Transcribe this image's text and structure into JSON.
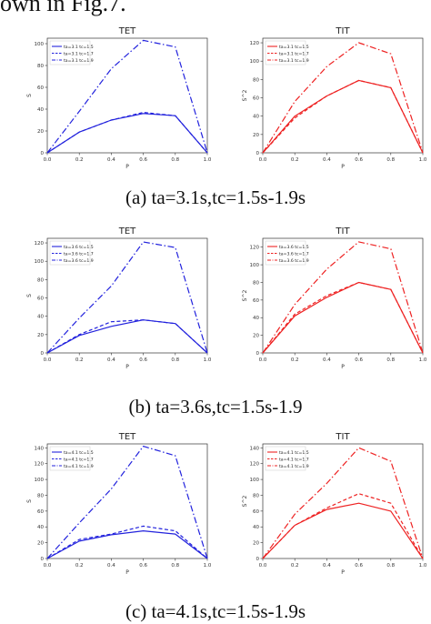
{
  "page": {
    "top_text": "own in Fig.7.",
    "captions": [
      "(a) ta=3.1s,tc=1.5s-1.9s",
      "(b) ta=3.6s,tc=1.5s-1.9",
      "(c) ta=4.1s,tc=1.5s-1.9s"
    ]
  },
  "colors": {
    "tet": "#2222dd",
    "tit": "#ee2222",
    "axis": "#333333"
  },
  "chart_data": [
    {
      "type": "line",
      "title": "TET",
      "xlabel": "P",
      "ylabel": "S",
      "x": [
        0.0,
        0.2,
        0.4,
        0.6,
        0.8,
        1.0
      ],
      "xlim": [
        0,
        1
      ],
      "ylim": [
        0,
        105
      ],
      "yticks": [
        0,
        20,
        40,
        60,
        80,
        100
      ],
      "legend_position": "top-left",
      "series": [
        {
          "name": "ta=3.1 tc=1.5",
          "style": "solid",
          "values": [
            0,
            19,
            30,
            36,
            34,
            0
          ]
        },
        {
          "name": "ta=3.1 tc=1.7",
          "style": "dashed",
          "values": [
            0,
            19,
            30,
            37,
            34,
            0
          ]
        },
        {
          "name": "ta=3.1 tc=1.9",
          "style": "dashdot",
          "values": [
            0,
            38,
            77,
            103,
            97,
            0
          ]
        }
      ]
    },
    {
      "type": "line",
      "title": "TIT",
      "xlabel": "P",
      "ylabel": "S^2",
      "x": [
        0.0,
        0.2,
        0.4,
        0.6,
        0.8,
        1.0
      ],
      "xlim": [
        0,
        1
      ],
      "ylim": [
        0,
        125
      ],
      "yticks": [
        0,
        20,
        40,
        60,
        80,
        100,
        120
      ],
      "legend_position": "top-left",
      "series": [
        {
          "name": "ta=3.1 tc=1.5",
          "style": "solid",
          "values": [
            0,
            40,
            62,
            79,
            71,
            0
          ]
        },
        {
          "name": "ta=3.1 tc=1.7",
          "style": "dashed",
          "values": [
            0,
            38,
            62,
            79,
            71,
            0
          ]
        },
        {
          "name": "ta=3.1 tc=1.9",
          "style": "dashdot",
          "values": [
            0,
            56,
            94,
            120,
            108,
            0
          ]
        }
      ]
    },
    {
      "type": "line",
      "title": "TET",
      "xlabel": "P",
      "ylabel": "S",
      "x": [
        0.0,
        0.2,
        0.4,
        0.6,
        0.8,
        1.0
      ],
      "xlim": [
        0,
        1
      ],
      "ylim": [
        0,
        125
      ],
      "yticks": [
        0,
        20,
        40,
        60,
        80,
        100,
        120
      ],
      "legend_position": "top-left",
      "series": [
        {
          "name": "ta=3.6 tc=1.5",
          "style": "solid",
          "values": [
            0,
            19,
            29,
            36,
            32,
            0
          ]
        },
        {
          "name": "ta=3.6 tc=1.7",
          "style": "dashed",
          "values": [
            0,
            20,
            34,
            36,
            32,
            0
          ]
        },
        {
          "name": "ta=3.6 tc=1.9",
          "style": "dashdot",
          "values": [
            0,
            38,
            73,
            121,
            115,
            0
          ]
        }
      ]
    },
    {
      "type": "line",
      "title": "TIT",
      "xlabel": "P",
      "ylabel": "S^2",
      "x": [
        0.0,
        0.2,
        0.4,
        0.6,
        0.8,
        1.0
      ],
      "xlim": [
        0,
        1
      ],
      "ylim": [
        0,
        130
      ],
      "yticks": [
        0,
        20,
        40,
        60,
        80,
        100,
        120
      ],
      "legend_position": "top-left",
      "series": [
        {
          "name": "ta=3.6 tc=1.5",
          "style": "solid",
          "values": [
            0,
            42,
            63,
            80,
            72,
            0
          ]
        },
        {
          "name": "ta=3.6 tc=1.7",
          "style": "dashed",
          "values": [
            0,
            44,
            65,
            80,
            72,
            0
          ]
        },
        {
          "name": "ta=3.6 tc=1.9",
          "style": "dashdot",
          "values": [
            0,
            55,
            95,
            126,
            118,
            0
          ]
        }
      ]
    },
    {
      "type": "line",
      "title": "TET",
      "xlabel": "P",
      "ylabel": "S",
      "x": [
        0.0,
        0.2,
        0.4,
        0.6,
        0.8,
        1.0
      ],
      "xlim": [
        0,
        1
      ],
      "ylim": [
        0,
        145
      ],
      "yticks": [
        0,
        20,
        40,
        60,
        80,
        100,
        120,
        140
      ],
      "legend_position": "top-left",
      "series": [
        {
          "name": "ta=4.1 tc=1.5",
          "style": "solid",
          "values": [
            0,
            22,
            30,
            35,
            31,
            0
          ]
        },
        {
          "name": "ta=4.1 tc=1.7",
          "style": "dashed",
          "values": [
            0,
            24,
            31,
            41,
            35,
            0
          ]
        },
        {
          "name": "ta=4.1 tc=1.9",
          "style": "dashdot",
          "values": [
            0,
            45,
            88,
            142,
            130,
            0
          ]
        }
      ]
    },
    {
      "type": "line",
      "title": "TIT",
      "xlabel": "P",
      "ylabel": "S^2",
      "x": [
        0.0,
        0.2,
        0.4,
        0.6,
        0.8,
        1.0
      ],
      "xlim": [
        0,
        1
      ],
      "ylim": [
        0,
        145
      ],
      "yticks": [
        0,
        20,
        40,
        60,
        80,
        100,
        120,
        140
      ],
      "legend_position": "top-left",
      "series": [
        {
          "name": "ta=4.1 tc=1.5",
          "style": "solid",
          "values": [
            0,
            42,
            62,
            70,
            60,
            0
          ]
        },
        {
          "name": "ta=4.1 tc=1.7",
          "style": "dashed",
          "values": [
            0,
            42,
            64,
            82,
            70,
            0
          ]
        },
        {
          "name": "ta=4.1 tc=1.9",
          "style": "dashdot",
          "values": [
            0,
            56,
            95,
            140,
            123,
            0
          ]
        }
      ]
    }
  ]
}
